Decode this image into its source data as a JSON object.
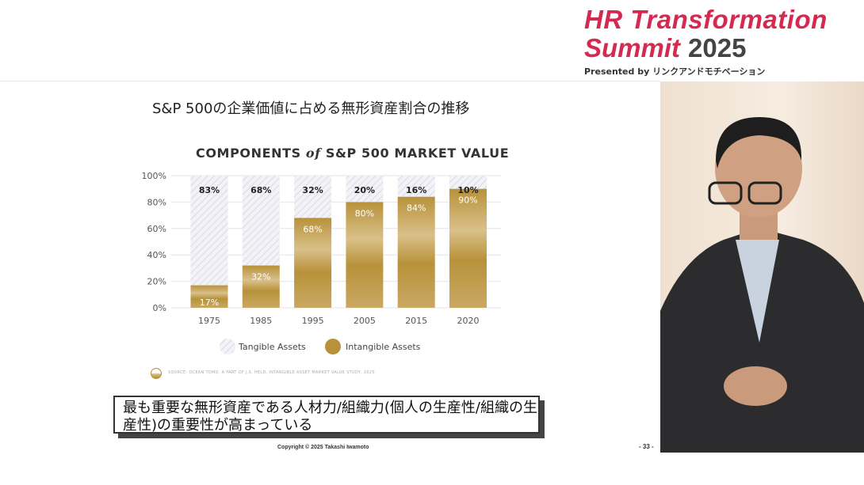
{
  "header": {
    "logo_line1": "HR Transformation",
    "logo_line2": "Summit",
    "logo_year": "2025",
    "presented_by": "Presented by リンクアンドモチベーション"
  },
  "slide": {
    "title": "S&P 500の企業価値に占める無形資産割合の推移",
    "callout": "最も重要な無形資産である人材力/組織力(個人の生産性/組織の生産性)の重要性が高まっている",
    "copyright": "Copyright © 2025 Takashi Iwamoto",
    "page_number": "- 33 -"
  },
  "chart_data": {
    "type": "bar",
    "stacked": true,
    "title_part1": "COMPONENTS",
    "title_part2": "of",
    "title_part3": "S&P 500 MARKET VALUE",
    "categories": [
      "1975",
      "1985",
      "1995",
      "2005",
      "2015",
      "2020"
    ],
    "series": [
      {
        "name": "Intangible Assets",
        "values": [
          17,
          32,
          68,
          80,
          84,
          90
        ],
        "labels": [
          "17%",
          "32%",
          "68%",
          "80%",
          "84%",
          "90%"
        ],
        "color": "#b8923a"
      },
      {
        "name": "Tangible Assets",
        "values": [
          83,
          68,
          32,
          20,
          16,
          10
        ],
        "labels": [
          "83%",
          "68%",
          "32%",
          "20%",
          "16%",
          "10%"
        ],
        "color": "#e4e4ee"
      }
    ],
    "yticks": [
      "0%",
      "20%",
      "40%",
      "60%",
      "80%",
      "100%"
    ],
    "ylim": [
      0,
      100
    ],
    "grid": true,
    "legend": "bottom",
    "source": "SOURCE: OCEAN TOMO, A PART OF J.S. HELD, INTANGIBLE ASSET MARKET VALUE STUDY, 2020"
  }
}
